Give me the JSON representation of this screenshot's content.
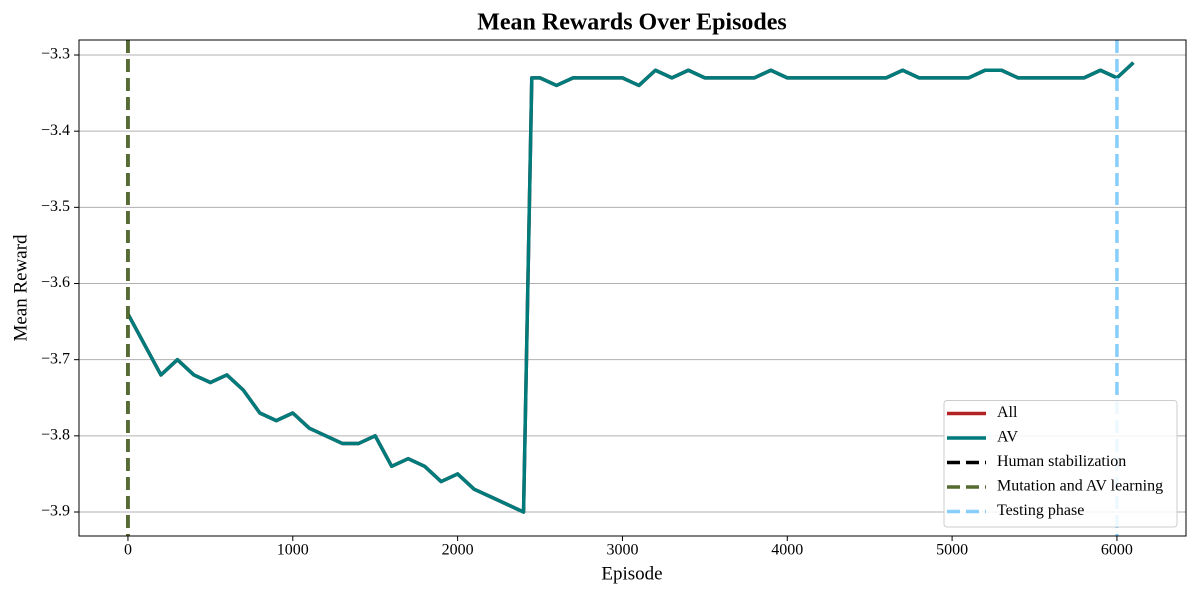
{
  "chart_data": {
    "type": "line",
    "title": "Mean Rewards Over Episodes",
    "x_label": "Episode",
    "y_label": "Mean Reward",
    "x": [
      0,
      100,
      200,
      300,
      400,
      500,
      600,
      700,
      800,
      900,
      1000,
      1100,
      1200,
      1300,
      1400,
      1500,
      1600,
      1700,
      1800,
      1900,
      2000,
      2100,
      2200,
      2300,
      2400,
      2450,
      2500,
      2600,
      2700,
      2800,
      2900,
      3000,
      3100,
      3200,
      3300,
      3400,
      3500,
      3600,
      3700,
      3800,
      3900,
      4000,
      4100,
      4200,
      4300,
      4400,
      4500,
      4600,
      4700,
      4800,
      4900,
      5000,
      5100,
      5200,
      5300,
      5400,
      5500,
      5600,
      5700,
      5800,
      5900,
      6000,
      6100
    ],
    "series": [
      {
        "name": "All",
        "color": "#b22222",
        "values": [
          -3.64,
          -3.68,
          -3.72,
          -3.7,
          -3.72,
          -3.73,
          -3.72,
          -3.74,
          -3.77,
          -3.78,
          -3.77,
          -3.79,
          -3.8,
          -3.81,
          -3.81,
          -3.8,
          -3.84,
          -3.83,
          -3.84,
          -3.86,
          -3.85,
          -3.87,
          -3.88,
          -3.89,
          -3.9,
          -3.33,
          -3.33,
          -3.34,
          -3.33,
          -3.33,
          -3.33,
          -3.33,
          -3.34,
          -3.32,
          -3.33,
          -3.32,
          -3.33,
          -3.33,
          -3.33,
          -3.33,
          -3.32,
          -3.33,
          -3.33,
          -3.33,
          -3.33,
          -3.33,
          -3.33,
          -3.33,
          -3.32,
          -3.33,
          -3.33,
          -3.33,
          -3.33,
          -3.32,
          -3.32,
          -3.33,
          -3.33,
          -3.33,
          -3.33,
          -3.33,
          -3.32,
          -3.33,
          -3.31
        ]
      },
      {
        "name": "AV",
        "color": "#007b7b",
        "values": [
          -3.64,
          -3.68,
          -3.72,
          -3.7,
          -3.72,
          -3.73,
          -3.72,
          -3.74,
          -3.77,
          -3.78,
          -3.77,
          -3.79,
          -3.8,
          -3.81,
          -3.81,
          -3.8,
          -3.84,
          -3.83,
          -3.84,
          -3.86,
          -3.85,
          -3.87,
          -3.88,
          -3.89,
          -3.9,
          -3.33,
          -3.33,
          -3.34,
          -3.33,
          -3.33,
          -3.33,
          -3.33,
          -3.34,
          -3.32,
          -3.33,
          -3.32,
          -3.33,
          -3.33,
          -3.33,
          -3.33,
          -3.32,
          -3.33,
          -3.33,
          -3.33,
          -3.33,
          -3.33,
          -3.33,
          -3.33,
          -3.32,
          -3.33,
          -3.33,
          -3.33,
          -3.33,
          -3.32,
          -3.32,
          -3.33,
          -3.33,
          -3.33,
          -3.33,
          -3.33,
          -3.32,
          -3.33,
          -3.31
        ]
      }
    ],
    "vlines": [
      {
        "name": "Human stabilization",
        "color": "#000000",
        "x": 0
      },
      {
        "name": "Mutation and AV learning",
        "color": "#556b2f",
        "x": 0
      },
      {
        "name": "Testing phase",
        "color": "#87cefa",
        "x": 6000
      }
    ],
    "xlim": [
      -297,
      6419
    ],
    "ylim": [
      -3.9315,
      -3.2803
    ],
    "xticks": [
      0,
      1000,
      2000,
      3000,
      4000,
      5000,
      6000
    ],
    "yticks": [
      {
        "value": -3.9,
        "label": "−3.9"
      },
      {
        "value": -3.8,
        "label": "−3.8"
      },
      {
        "value": -3.7,
        "label": "−3.7"
      },
      {
        "value": -3.6,
        "label": "−3.6"
      },
      {
        "value": -3.5,
        "label": "−3.5"
      },
      {
        "value": -3.4,
        "label": "−3.4"
      },
      {
        "value": -3.3,
        "label": "−3.3"
      }
    ],
    "grid": "y",
    "legend": "lower right"
  }
}
